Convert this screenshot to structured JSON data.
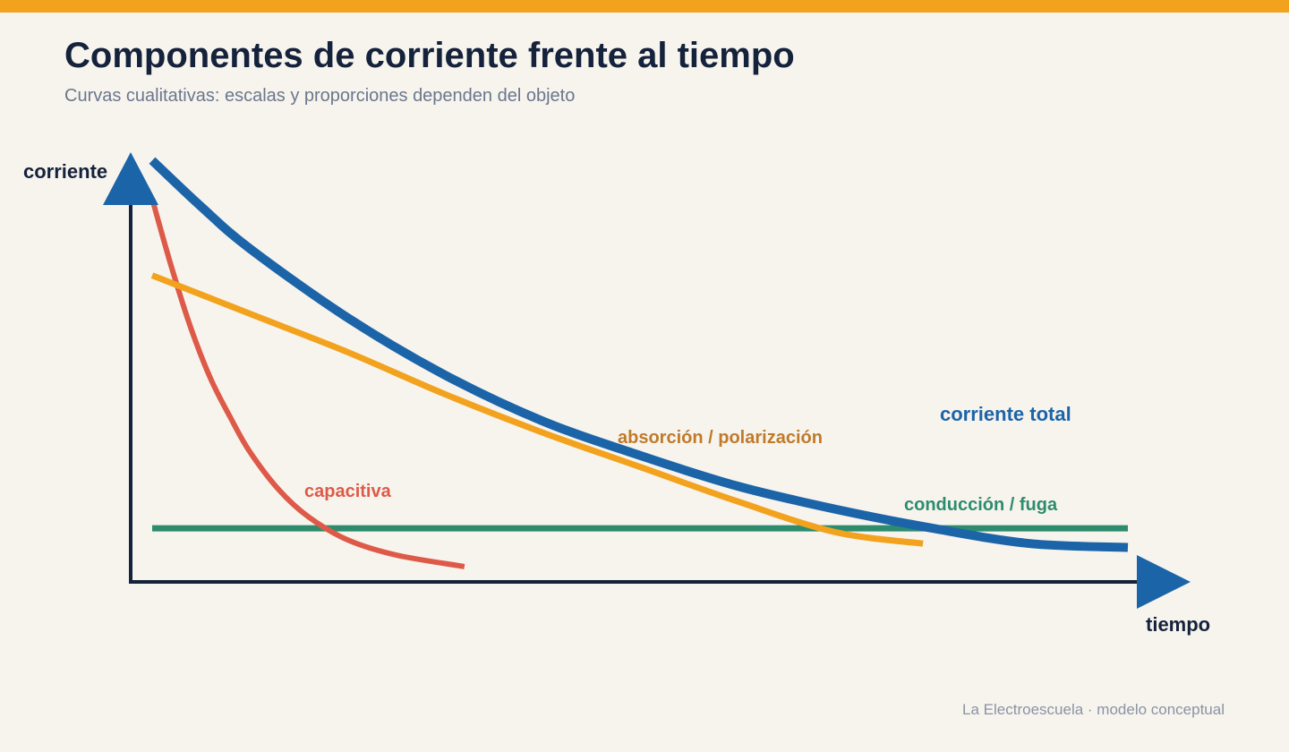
{
  "header": {
    "title": "Componentes de corriente frente al tiempo",
    "subtitle": "Curvas cualitativas: escalas y proporciones dependen del objeto"
  },
  "footer": {
    "credit": "La Electroescuela · modelo conceptual"
  },
  "colors": {
    "accent_bar": "#f2a21d",
    "axis": "#15223b",
    "arrow": "#1c64a8",
    "total": "#1c64a8",
    "absorcion": "#f2a21d",
    "absorcion_label": "#c07a2a",
    "capacitiva": "#de5a48",
    "conduccion": "#2e8c6e"
  },
  "chart_data": {
    "type": "line",
    "qualitative": true,
    "xlabel": "tiempo",
    "ylabel": "corriente",
    "xlim": [
      0,
      1
    ],
    "ylim": [
      0,
      1
    ],
    "grid": false,
    "series": [
      {
        "key": "total",
        "name": "corriente total",
        "x": [
          0,
          0.05,
          0.1,
          0.2,
          0.3,
          0.4,
          0.5,
          0.6,
          0.7,
          0.8,
          0.9,
          1.0
        ],
        "values": [
          1.1,
          0.98,
          0.87,
          0.69,
          0.54,
          0.42,
          0.33,
          0.25,
          0.19,
          0.14,
          0.1,
          0.09
        ]
      },
      {
        "key": "absorcion",
        "name": "absorción / polarización",
        "x": [
          0,
          0.1,
          0.2,
          0.3,
          0.4,
          0.5,
          0.6,
          0.7,
          0.79
        ],
        "values": [
          0.8,
          0.7,
          0.6,
          0.49,
          0.39,
          0.3,
          0.21,
          0.13,
          0.1
        ]
      },
      {
        "key": "capacitiva",
        "name": "capacitiva",
        "x": [
          0,
          0.02,
          0.04,
          0.06,
          0.08,
          0.1,
          0.13,
          0.16,
          0.2,
          0.25,
          0.32
        ],
        "values": [
          1.0,
          0.82,
          0.66,
          0.53,
          0.43,
          0.34,
          0.24,
          0.17,
          0.11,
          0.07,
          0.04
        ]
      },
      {
        "key": "conduccion",
        "name": "conducción / fuga",
        "x": [
          0,
          1.0
        ],
        "values": [
          0.14,
          0.14
        ]
      }
    ]
  }
}
